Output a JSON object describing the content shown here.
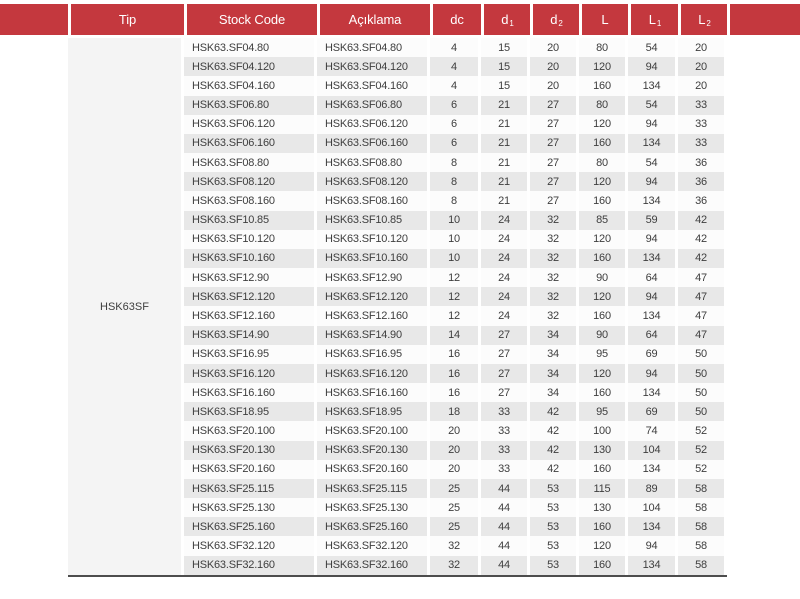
{
  "colors": {
    "header_red": "#c4383e",
    "header_text": "#ffffff",
    "stripe_gray": "#e8e8e8",
    "white_row": "#fcfcfc",
    "tip_cell_bg": "#f4f4f4",
    "body_text": "#3e3e3e",
    "bottom_line": "#4d4d4d"
  },
  "table": {
    "tip_value": "HSK63SF",
    "columns": [
      {
        "key": "tip",
        "label": "Tip",
        "sub": ""
      },
      {
        "key": "stock-code",
        "label": "Stock Code",
        "sub": ""
      },
      {
        "key": "aciklama",
        "label": "Açıklama",
        "sub": ""
      },
      {
        "key": "dc",
        "label": "dc",
        "sub": ""
      },
      {
        "key": "d1",
        "label": "d",
        "sub": "1"
      },
      {
        "key": "d2",
        "label": "d",
        "sub": "2"
      },
      {
        "key": "l",
        "label": "L",
        "sub": ""
      },
      {
        "key": "l1",
        "label": "L",
        "sub": "1"
      },
      {
        "key": "l2",
        "label": "L",
        "sub": "2"
      }
    ],
    "rows": [
      [
        "HSK63.SF04.80",
        "HSK63.SF04.80",
        "4",
        "15",
        "20",
        "80",
        "54",
        "20"
      ],
      [
        "HSK63.SF04.120",
        "HSK63.SF04.120",
        "4",
        "15",
        "20",
        "120",
        "94",
        "20"
      ],
      [
        "HSK63.SF04.160",
        "HSK63.SF04.160",
        "4",
        "15",
        "20",
        "160",
        "134",
        "20"
      ],
      [
        "HSK63.SF06.80",
        "HSK63.SF06.80",
        "6",
        "21",
        "27",
        "80",
        "54",
        "33"
      ],
      [
        "HSK63.SF06.120",
        "HSK63.SF06.120",
        "6",
        "21",
        "27",
        "120",
        "94",
        "33"
      ],
      [
        "HSK63.SF06.160",
        "HSK63.SF06.160",
        "6",
        "21",
        "27",
        "160",
        "134",
        "33"
      ],
      [
        "HSK63.SF08.80",
        "HSK63.SF08.80",
        "8",
        "21",
        "27",
        "80",
        "54",
        "36"
      ],
      [
        "HSK63.SF08.120",
        "HSK63.SF08.120",
        "8",
        "21",
        "27",
        "120",
        "94",
        "36"
      ],
      [
        "HSK63.SF08.160",
        "HSK63.SF08.160",
        "8",
        "21",
        "27",
        "160",
        "134",
        "36"
      ],
      [
        "HSK63.SF10.85",
        "HSK63.SF10.85",
        "10",
        "24",
        "32",
        "85",
        "59",
        "42"
      ],
      [
        "HSK63.SF10.120",
        "HSK63.SF10.120",
        "10",
        "24",
        "32",
        "120",
        "94",
        "42"
      ],
      [
        "HSK63.SF10.160",
        "HSK63.SF10.160",
        "10",
        "24",
        "32",
        "160",
        "134",
        "42"
      ],
      [
        "HSK63.SF12.90",
        "HSK63.SF12.90",
        "12",
        "24",
        "32",
        "90",
        "64",
        "47"
      ],
      [
        "HSK63.SF12.120",
        "HSK63.SF12.120",
        "12",
        "24",
        "32",
        "120",
        "94",
        "47"
      ],
      [
        "HSK63.SF12.160",
        "HSK63.SF12.160",
        "12",
        "24",
        "32",
        "160",
        "134",
        "47"
      ],
      [
        "HSK63.SF14.90",
        "HSK63.SF14.90",
        "14",
        "27",
        "34",
        "90",
        "64",
        "47"
      ],
      [
        "HSK63.SF16.95",
        "HSK63.SF16.95",
        "16",
        "27",
        "34",
        "95",
        "69",
        "50"
      ],
      [
        "HSK63.SF16.120",
        "HSK63.SF16.120",
        "16",
        "27",
        "34",
        "120",
        "94",
        "50"
      ],
      [
        "HSK63.SF16.160",
        "HSK63.SF16.160",
        "16",
        "27",
        "34",
        "160",
        "134",
        "50"
      ],
      [
        "HSK63.SF18.95",
        "HSK63.SF18.95",
        "18",
        "33",
        "42",
        "95",
        "69",
        "50"
      ],
      [
        "HSK63.SF20.100",
        "HSK63.SF20.100",
        "20",
        "33",
        "42",
        "100",
        "74",
        "52"
      ],
      [
        "HSK63.SF20.130",
        "HSK63.SF20.130",
        "20",
        "33",
        "42",
        "130",
        "104",
        "52"
      ],
      [
        "HSK63.SF20.160",
        "HSK63.SF20.160",
        "20",
        "33",
        "42",
        "160",
        "134",
        "52"
      ],
      [
        "HSK63.SF25.115",
        "HSK63.SF25.115",
        "25",
        "44",
        "53",
        "115",
        "89",
        "58"
      ],
      [
        "HSK63.SF25.130",
        "HSK63.SF25.130",
        "25",
        "44",
        "53",
        "130",
        "104",
        "58"
      ],
      [
        "HSK63.SF25.160",
        "HSK63.SF25.160",
        "25",
        "44",
        "53",
        "160",
        "134",
        "58"
      ],
      [
        "HSK63.SF32.120",
        "HSK63.SF32.120",
        "32",
        "44",
        "53",
        "120",
        "94",
        "58"
      ],
      [
        "HSK63.SF32.160",
        "HSK63.SF32.160",
        "32",
        "44",
        "53",
        "160",
        "134",
        "58"
      ]
    ]
  }
}
